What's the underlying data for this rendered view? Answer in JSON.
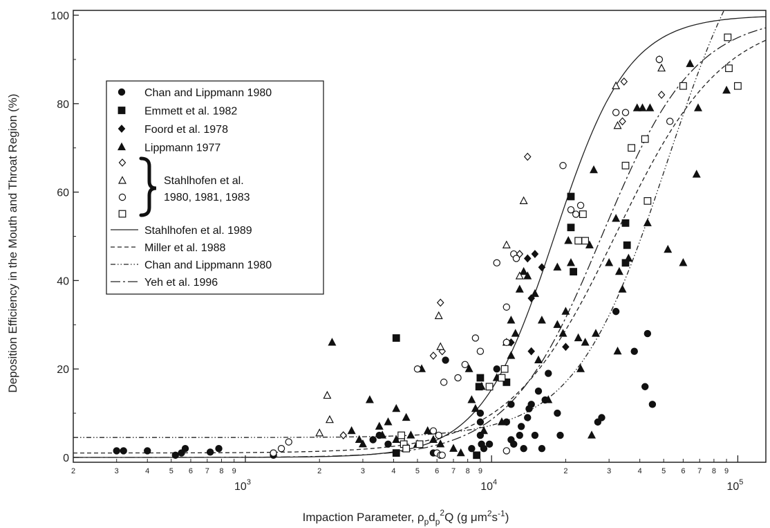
{
  "chart_data": {
    "type": "scatter",
    "xscale": "log",
    "xlim": [
      200,
      130000
    ],
    "ylim": [
      0,
      100
    ],
    "xlabel": {
      "prefix": "Impaction Parameter, ",
      "rho": "ρ",
      "rho_sub": "p",
      "d": "d",
      "d_sub": "p",
      "d_sup": "2",
      "q": "Q (g μm",
      "unit_sup1": "2",
      "unit_mid": "s",
      "unit_sup2": "-1",
      "suffix": ")"
    },
    "ylabel": "Deposition Efficiency in the Mouth and Throat Region (%)",
    "y_ticks": [
      {
        "value": 0,
        "label": "0"
      },
      {
        "value": 20,
        "label": "20"
      },
      {
        "value": 40,
        "label": "40"
      },
      {
        "value": 60,
        "label": "60"
      },
      {
        "value": 80,
        "label": "80"
      },
      {
        "value": 100,
        "label": "100"
      }
    ],
    "x_major_ticks": [
      {
        "value": 1000,
        "base": "10",
        "exp": "3"
      },
      {
        "value": 10000,
        "base": "10",
        "exp": "4"
      },
      {
        "value": 100000,
        "base": "10",
        "exp": "5"
      }
    ],
    "x_minor_ticks": [
      {
        "value": 200,
        "label": "2"
      },
      {
        "value": 300,
        "label": "3"
      },
      {
        "value": 400,
        "label": "4"
      },
      {
        "value": 500,
        "label": "5"
      },
      {
        "value": 600,
        "label": "6"
      },
      {
        "value": 700,
        "label": "7"
      },
      {
        "value": 800,
        "label": "8"
      },
      {
        "value": 900,
        "label": "9"
      },
      {
        "value": 2000,
        "label": "2"
      },
      {
        "value": 3000,
        "label": "3"
      },
      {
        "value": 4000,
        "label": "4"
      },
      {
        "value": 5000,
        "label": "5"
      },
      {
        "value": 6000,
        "label": "6"
      },
      {
        "value": 7000,
        "label": "7"
      },
      {
        "value": 8000,
        "label": "8"
      },
      {
        "value": 9000,
        "label": "9"
      },
      {
        "value": 20000,
        "label": "2"
      },
      {
        "value": 30000,
        "label": "3"
      },
      {
        "value": 40000,
        "label": "4"
      },
      {
        "value": 50000,
        "label": "5"
      },
      {
        "value": 60000,
        "label": "6"
      },
      {
        "value": 70000,
        "label": "7"
      },
      {
        "value": 80000,
        "label": "8"
      },
      {
        "value": 90000,
        "label": "9"
      }
    ],
    "legend": {
      "position": "upper-left",
      "marker_entries": [
        {
          "label": "Chan and Lippmann 1980",
          "marker": "filled-circle"
        },
        {
          "label": "Emmett et al. 1982",
          "marker": "filled-square"
        },
        {
          "label": "Foord et al. 1978",
          "marker": "filled-diamond"
        },
        {
          "label": "Lippmann 1977",
          "marker": "filled-triangle"
        }
      ],
      "group_markers": [
        "open-diamond",
        "open-triangle",
        "open-circle",
        "open-square"
      ],
      "group_label_lines": [
        "Stahlhofen et al.",
        "1980, 1981, 1983"
      ],
      "line_entries": [
        {
          "label": "Stahlhofen et al. 1989",
          "dash": "solid"
        },
        {
          "label": "Miller et al. 1988",
          "dash": "dashed"
        },
        {
          "label": "Chan and Lippmann 1980",
          "dash": "dash-dot-dot"
        },
        {
          "label": "Yeh et al. 1996",
          "dash": "long-dash-dot"
        }
      ]
    },
    "series": [
      {
        "name": "Chan and Lippmann 1980",
        "marker": "filled-circle",
        "points": [
          [
            300,
            1.5
          ],
          [
            320,
            1.5
          ],
          [
            400,
            1.5
          ],
          [
            520,
            0.5
          ],
          [
            570,
            2
          ],
          [
            550,
            1
          ],
          [
            720,
            1.2
          ],
          [
            780,
            2
          ],
          [
            1300,
            0.5
          ],
          [
            3300,
            4
          ],
          [
            3500,
            5
          ],
          [
            3800,
            3
          ],
          [
            4100,
            1
          ],
          [
            4400,
            3
          ],
          [
            5800,
            1
          ],
          [
            6500,
            22
          ],
          [
            8300,
            2
          ],
          [
            9000,
            8
          ],
          [
            9000,
            10
          ],
          [
            9000,
            5
          ],
          [
            9100,
            3
          ],
          [
            9300,
            2
          ],
          [
            9800,
            3
          ],
          [
            10500,
            20
          ],
          [
            12000,
            4
          ],
          [
            12300,
            3
          ],
          [
            13000,
            5
          ],
          [
            13500,
            2
          ],
          [
            14000,
            9
          ],
          [
            14500,
            12
          ],
          [
            15000,
            5
          ],
          [
            15500,
            15
          ],
          [
            16000,
            2
          ],
          [
            16500,
            13
          ],
          [
            17000,
            19
          ],
          [
            18500,
            10
          ],
          [
            19000,
            5
          ],
          [
            27000,
            8
          ],
          [
            28000,
            9
          ],
          [
            32000,
            33
          ],
          [
            38000,
            24
          ],
          [
            42000,
            16
          ],
          [
            43000,
            28
          ],
          [
            45000,
            12
          ],
          [
            11500,
            8
          ],
          [
            12000,
            12
          ],
          [
            13200,
            7
          ],
          [
            14200,
            11
          ]
        ]
      },
      {
        "name": "Emmett et al. 1982",
        "marker": "filled-square",
        "points": [
          [
            4100,
            1
          ],
          [
            4100,
            27
          ],
          [
            8700,
            0.5
          ],
          [
            8900,
            16
          ],
          [
            9000,
            18
          ],
          [
            11500,
            17
          ],
          [
            21000,
            52
          ],
          [
            21000,
            59
          ],
          [
            21500,
            42
          ],
          [
            35000,
            53
          ],
          [
            35000,
            44
          ],
          [
            35500,
            48
          ]
        ]
      },
      {
        "name": "Foord et al. 1978",
        "marker": "filled-diamond",
        "points": [
          [
            12000,
            26
          ],
          [
            14000,
            45
          ],
          [
            14500,
            36
          ],
          [
            14500,
            24
          ],
          [
            15000,
            46
          ],
          [
            16000,
            43
          ],
          [
            20000,
            25
          ]
        ]
      },
      {
        "name": "Lippmann 1977",
        "marker": "filled-triangle",
        "points": [
          [
            2250,
            26
          ],
          [
            2700,
            6
          ],
          [
            2900,
            4
          ],
          [
            3000,
            3
          ],
          [
            3200,
            13
          ],
          [
            3500,
            7
          ],
          [
            3600,
            5
          ],
          [
            3800,
            8
          ],
          [
            4100,
            11
          ],
          [
            4100,
            4
          ],
          [
            4500,
            9
          ],
          [
            4700,
            5
          ],
          [
            5000,
            3
          ],
          [
            5200,
            20
          ],
          [
            5500,
            6
          ],
          [
            5800,
            4
          ],
          [
            6200,
            3
          ],
          [
            7000,
            2
          ],
          [
            7500,
            1
          ],
          [
            8100,
            20
          ],
          [
            8300,
            13
          ],
          [
            8600,
            11
          ],
          [
            9100,
            16
          ],
          [
            9300,
            6
          ],
          [
            10500,
            18
          ],
          [
            11000,
            8
          ],
          [
            11500,
            26
          ],
          [
            12000,
            23
          ],
          [
            12000,
            31
          ],
          [
            12500,
            28
          ],
          [
            13000,
            38
          ],
          [
            13500,
            42
          ],
          [
            14000,
            41
          ],
          [
            15000,
            37
          ],
          [
            15500,
            22
          ],
          [
            16000,
            31
          ],
          [
            17000,
            13
          ],
          [
            18500,
            30
          ],
          [
            18500,
            43
          ],
          [
            19500,
            28
          ],
          [
            20000,
            33
          ],
          [
            20500,
            49
          ],
          [
            21000,
            44
          ],
          [
            22500,
            27
          ],
          [
            23000,
            20
          ],
          [
            24000,
            26
          ],
          [
            25000,
            48
          ],
          [
            25500,
            5
          ],
          [
            26000,
            65
          ],
          [
            26500,
            28
          ],
          [
            30000,
            44
          ],
          [
            32000,
            54
          ],
          [
            32500,
            24
          ],
          [
            33000,
            42
          ],
          [
            34000,
            38
          ],
          [
            36000,
            45
          ],
          [
            39000,
            79
          ],
          [
            41000,
            79
          ],
          [
            43000,
            53
          ],
          [
            44000,
            79
          ],
          [
            52000,
            47
          ],
          [
            60000,
            44
          ],
          [
            64000,
            89
          ],
          [
            68000,
            64
          ],
          [
            69000,
            79
          ],
          [
            90000,
            83
          ]
        ]
      },
      {
        "name": "Stahlhofen et al. 1980, 1981, 1983 (diamond)",
        "marker": "open-diamond",
        "points": [
          [
            2500,
            5
          ],
          [
            5800,
            23
          ],
          [
            6200,
            35
          ],
          [
            6300,
            24
          ],
          [
            13000,
            46
          ],
          [
            14000,
            68
          ],
          [
            34000,
            76
          ],
          [
            34500,
            85
          ],
          [
            48000,
            90
          ],
          [
            49000,
            82
          ]
        ]
      },
      {
        "name": "Stahlhofen et al. 1980, 1981, 1983 (triangle)",
        "marker": "open-triangle",
        "points": [
          [
            2000,
            5.5
          ],
          [
            2150,
            14
          ],
          [
            2200,
            8.5
          ],
          [
            6100,
            32
          ],
          [
            6200,
            25
          ],
          [
            11500,
            48
          ],
          [
            13000,
            41
          ],
          [
            13500,
            58
          ],
          [
            32000,
            84
          ],
          [
            32500,
            75
          ],
          [
            49000,
            88
          ]
        ]
      },
      {
        "name": "Stahlhofen et al. 1980, 1981, 1983 (circle)",
        "marker": "open-circle",
        "points": [
          [
            1300,
            1
          ],
          [
            1400,
            2
          ],
          [
            1500,
            3.5
          ],
          [
            4300,
            4
          ],
          [
            5000,
            20
          ],
          [
            5800,
            6
          ],
          [
            6000,
            1
          ],
          [
            6100,
            5
          ],
          [
            6200,
            0.5
          ],
          [
            6300,
            0.5
          ],
          [
            6400,
            17
          ],
          [
            7300,
            18
          ],
          [
            7800,
            21
          ],
          [
            8600,
            27
          ],
          [
            9000,
            24
          ],
          [
            10500,
            44
          ],
          [
            11500,
            26
          ],
          [
            11500,
            34
          ],
          [
            11500,
            1.5
          ],
          [
            12300,
            46
          ],
          [
            12600,
            45
          ],
          [
            19500,
            66
          ],
          [
            21000,
            56
          ],
          [
            22000,
            55
          ],
          [
            23000,
            57
          ],
          [
            32000,
            78
          ],
          [
            35000,
            78
          ],
          [
            48000,
            90
          ],
          [
            53000,
            76
          ]
        ]
      },
      {
        "name": "Stahlhofen et al. 1980, 1981, 1983 (square)",
        "marker": "open-square",
        "points": [
          [
            4300,
            5
          ],
          [
            4400,
            3
          ],
          [
            4500,
            2
          ],
          [
            5100,
            3
          ],
          [
            9800,
            16
          ],
          [
            11000,
            18
          ],
          [
            11300,
            20
          ],
          [
            22500,
            49
          ],
          [
            23500,
            55
          ],
          [
            24000,
            49
          ],
          [
            35000,
            66
          ],
          [
            37000,
            70
          ],
          [
            42000,
            72
          ],
          [
            43000,
            58
          ],
          [
            60000,
            84
          ],
          [
            91000,
            95
          ],
          [
            92000,
            88
          ],
          [
            100000,
            84
          ]
        ]
      }
    ],
    "curves": [
      {
        "name": "Stahlhofen et al. 1989",
        "dash": "solid",
        "formula": {
          "a": 0.0002,
          "b": 0.85,
          "x0": 18000,
          "k": 2.9,
          "ymax": 100
        }
      },
      {
        "name": "Miller et al. 1988",
        "dash": "dashed",
        "formula": {
          "base": 1.0,
          "x0": 32000,
          "k": 2.0,
          "ymax": 100
        }
      },
      {
        "name": "Chan and Lippmann 1980",
        "dash": "dash-dot-dot",
        "formula": {
          "base": 4.5,
          "x0": 52000,
          "k": 2.3,
          "ymax": 130
        }
      },
      {
        "name": "Yeh et al. 1996",
        "dash": "long-dash-dot",
        "formula": {
          "base": 0,
          "x0": 28000,
          "k": 2.3,
          "ymax": 100
        }
      }
    ]
  }
}
